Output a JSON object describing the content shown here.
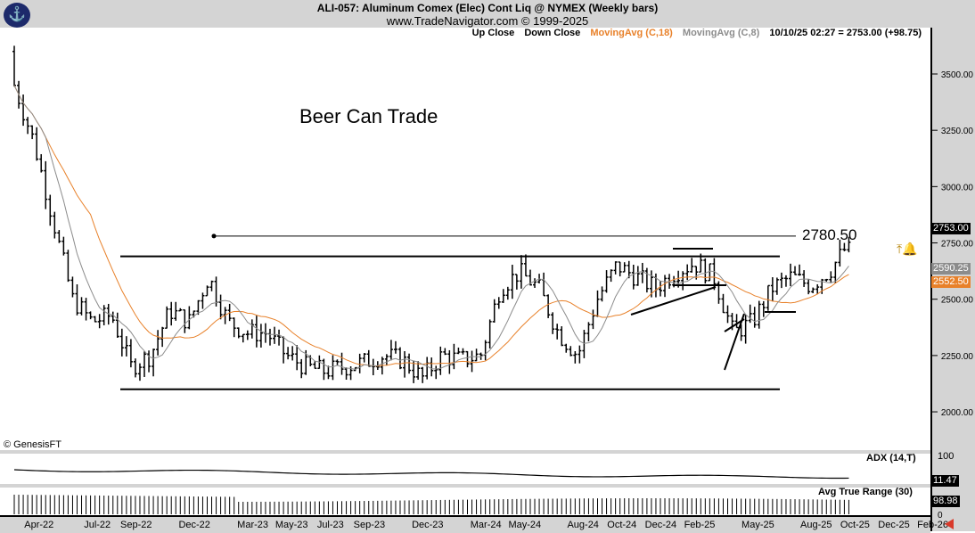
{
  "header": {
    "title": "ALI-057:  Aluminum Comex (Elec) Cont Liq @ NYMEX  (Weekly bars)",
    "site": "www.TradeNavigator.com © 1999-2025"
  },
  "legend": {
    "up": "Up Close",
    "down": "Down Close",
    "ma18": "MovingAvg (C,18)",
    "ma8": "MovingAvg (C,8)",
    "quote": "10/10/25 02:27 = 2753.00 (+98.75)"
  },
  "annotation": {
    "title": "Beer Can Trade",
    "level_label": "2780.50",
    "level": 2780.5,
    "resistance": 2690,
    "support": 2100
  },
  "copyright": "© GenesisFT",
  "panels": {
    "adx": {
      "label": "ADX (14,T)",
      "value": "11.47",
      "axis_top": "100"
    },
    "atr": {
      "label": "Avg True Range (30)",
      "value": "98.98",
      "axis_bottom": "0"
    }
  },
  "price_tags": {
    "last": "2753.00",
    "ma8": "2590.25",
    "ma18": "2552.50"
  },
  "colors": {
    "ma18": "#e8812a",
    "ma8": "#8c8c8c",
    "bars": "#000000",
    "arrow": "#d93a2b"
  },
  "chart_data": {
    "type": "ohlc-bar",
    "interval": "weekly",
    "y_ticks": [
      "3500.00",
      "3250.00",
      "3000.00",
      "2750.00",
      "2500.00",
      "2250.00",
      "2000.00"
    ],
    "ylim": [
      1900,
      3650
    ],
    "x_ticks": [
      "Apr-22",
      "Jul-22",
      "Sep-22",
      "Dec-22",
      "Mar-23",
      "May-23",
      "Jul-23",
      "Sep-23",
      "Dec-23",
      "Mar-24",
      "May-24",
      "Aug-24",
      "Oct-24",
      "Dec-24",
      "Feb-25",
      "May-25",
      "Aug-25",
      "Oct-25",
      "Dec-25",
      "Feb-26"
    ],
    "months": [
      "Mar-22",
      "Apr-22",
      "May-22",
      "Jun-22",
      "Jul-22",
      "Aug-22",
      "Sep-22",
      "Oct-22",
      "Nov-22",
      "Dec-22",
      "Jan-23",
      "Feb-23",
      "Mar-23",
      "Apr-23",
      "May-23",
      "Jun-23",
      "Jul-23",
      "Aug-23",
      "Sep-23",
      "Oct-23",
      "Nov-23",
      "Dec-23",
      "Jan-24",
      "Feb-24",
      "Mar-24",
      "Apr-24",
      "May-24",
      "Jun-24",
      "Jul-24",
      "Aug-24",
      "Sep-24",
      "Oct-24",
      "Nov-24",
      "Dec-24",
      "Jan-25",
      "Feb-25",
      "Mar-25",
      "Apr-25",
      "May-25",
      "Jun-25",
      "Jul-25",
      "Aug-25",
      "Sep-25",
      "Oct-25"
    ],
    "monthly_close_approx": [
      3450,
      3200,
      2850,
      2500,
      2400,
      2430,
      2200,
      2250,
      2450,
      2400,
      2600,
      2400,
      2350,
      2350,
      2250,
      2200,
      2180,
      2200,
      2220,
      2250,
      2230,
      2150,
      2250,
      2230,
      2250,
      2550,
      2620,
      2550,
      2350,
      2250,
      2500,
      2650,
      2600,
      2550,
      2620,
      2660,
      2600,
      2350,
      2400,
      2550,
      2600,
      2560,
      2630,
      2753
    ],
    "series": [
      {
        "name": "MovingAvg (C,18)",
        "color": "#e8812a"
      },
      {
        "name": "MovingAvg (C,8)",
        "color": "#8c8c8c"
      }
    ]
  }
}
